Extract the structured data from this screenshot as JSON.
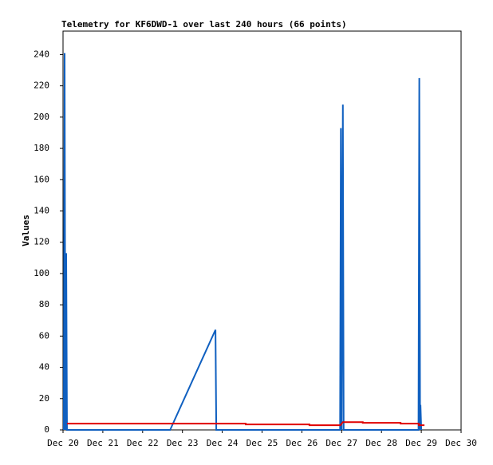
{
  "chart_data": {
    "type": "line",
    "title": "Telemetry for KF6DWD-1 over last 240 hours (66 points)",
    "y_label": "Values",
    "xlim": [
      20,
      30
    ],
    "xticks": [
      {
        "value": 20,
        "label": "Dec 20"
      },
      {
        "value": 21,
        "label": "Dec 21"
      },
      {
        "value": 22,
        "label": "Dec 22"
      },
      {
        "value": 23,
        "label": "Dec 23"
      },
      {
        "value": 24,
        "label": "Dec 24"
      },
      {
        "value": 25,
        "label": "Dec 25"
      },
      {
        "value": 26,
        "label": "Dec 26"
      },
      {
        "value": 27,
        "label": "Dec 27"
      },
      {
        "value": 28,
        "label": "Dec 28"
      },
      {
        "value": 29,
        "label": "Dec 29"
      },
      {
        "value": 30,
        "label": "Dec 30"
      }
    ],
    "ylim": [
      0,
      255
    ],
    "yticks": [
      0,
      20,
      40,
      60,
      80,
      100,
      120,
      140,
      160,
      180,
      200,
      220,
      240
    ],
    "grid": false,
    "series": [
      {
        "color": "#1060c0",
        "x": [
          20.02,
          20.04,
          20.06,
          20.08,
          20.1,
          22.69,
          23.83,
          23.85,
          26.96,
          26.98,
          27.0,
          27.03,
          27.05,
          28.93,
          28.95,
          28.97,
          28.98,
          29.0
        ],
        "values": [
          0,
          241,
          0,
          113,
          0,
          0,
          64,
          0,
          0,
          193,
          0,
          208,
          0,
          0,
          225,
          0,
          16,
          0
        ]
      },
      {
        "color": "#e00000",
        "x": [
          20.1,
          24.59,
          24.59,
          26.19,
          26.19,
          26.97,
          27.03,
          27.53,
          27.53,
          28.48,
          28.48,
          28.94,
          28.94,
          29.08
        ],
        "values": [
          4,
          4,
          3.5,
          3.5,
          3,
          3,
          5,
          5,
          4.5,
          4.5,
          4,
          4,
          3,
          3
        ]
      }
    ]
  }
}
